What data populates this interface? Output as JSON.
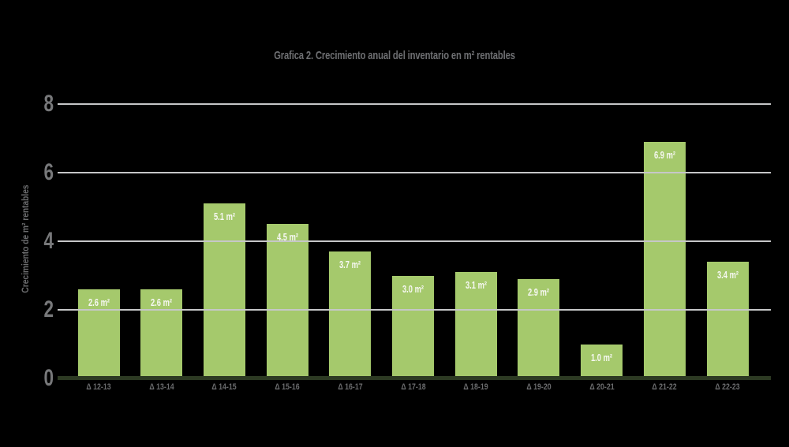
{
  "chart_data": {
    "type": "bar",
    "title": "Grafica 2. Crecimiento anual del inventario en m² rentables",
    "ylabel": "Crecimiento de m² rentables",
    "xlabel": "",
    "categories": [
      "Δ 12-13",
      "Δ 13-14",
      "Δ 14-15",
      "Δ 15-16",
      "Δ 16-17",
      "Δ 17-18",
      "Δ 18-19",
      "Δ 19-20",
      "Δ 20-21",
      "Δ 21-22",
      "Δ 22-23"
    ],
    "values": [
      2.6,
      2.6,
      5.1,
      4.5,
      3.7,
      3.0,
      3.1,
      2.9,
      1.0,
      6.9,
      3.4
    ],
    "bar_labels": [
      "2.6 m²",
      "2.6 m²",
      "5.1 m²",
      "4.5 m²",
      "3.7 m²",
      "3.0 m²",
      "3.1 m²",
      "2.9 m²",
      "1.0 m²",
      "6.9 m²",
      "3.4 m²"
    ],
    "yticks": [
      0,
      2,
      4,
      6,
      8
    ],
    "ylim": [
      0,
      8
    ],
    "grid": true,
    "legend": null,
    "colors": {
      "background": "#000000",
      "bar": "#a5c96c",
      "bar_label": "#f7f8f3",
      "gridline": "#c6c7c8",
      "baseline": "#2d3a23",
      "tick_text": "#77787a",
      "title_text": "#6e6f72",
      "xtick_text": "#6b6c6e"
    }
  }
}
